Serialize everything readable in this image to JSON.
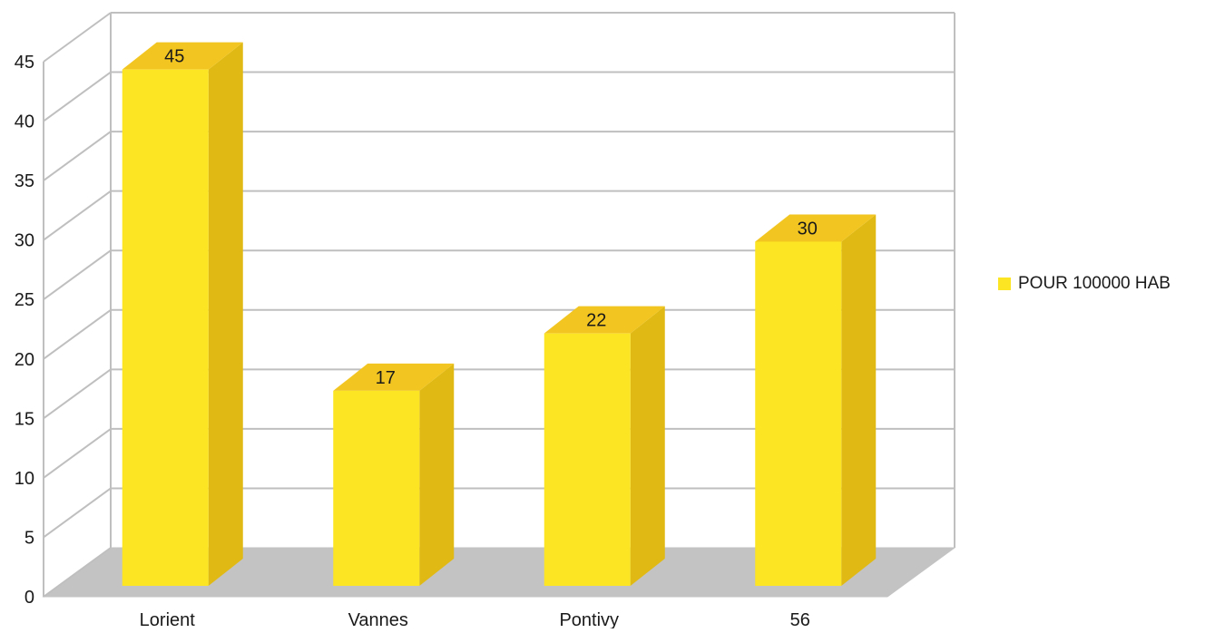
{
  "chart_data": {
    "type": "bar",
    "style": "3d-column",
    "categories": [
      "Lorient",
      "Vannes",
      "Pontivy",
      "56"
    ],
    "series": [
      {
        "name": "POUR 100000 HAB",
        "values": [
          45,
          17,
          22,
          30
        ],
        "color": "#FCE522"
      }
    ],
    "data_labels": [
      "45",
      "17",
      "22",
      "30"
    ],
    "ylim": [
      0,
      45
    ],
    "y_ticks": [
      0,
      5,
      10,
      15,
      20,
      25,
      30,
      35,
      40,
      45
    ],
    "grid": true,
    "legend_position": "right",
    "floor_color": "#C3C3C3",
    "bar_side_color": "#E0B915",
    "bar_top_color": "#F2C520"
  }
}
